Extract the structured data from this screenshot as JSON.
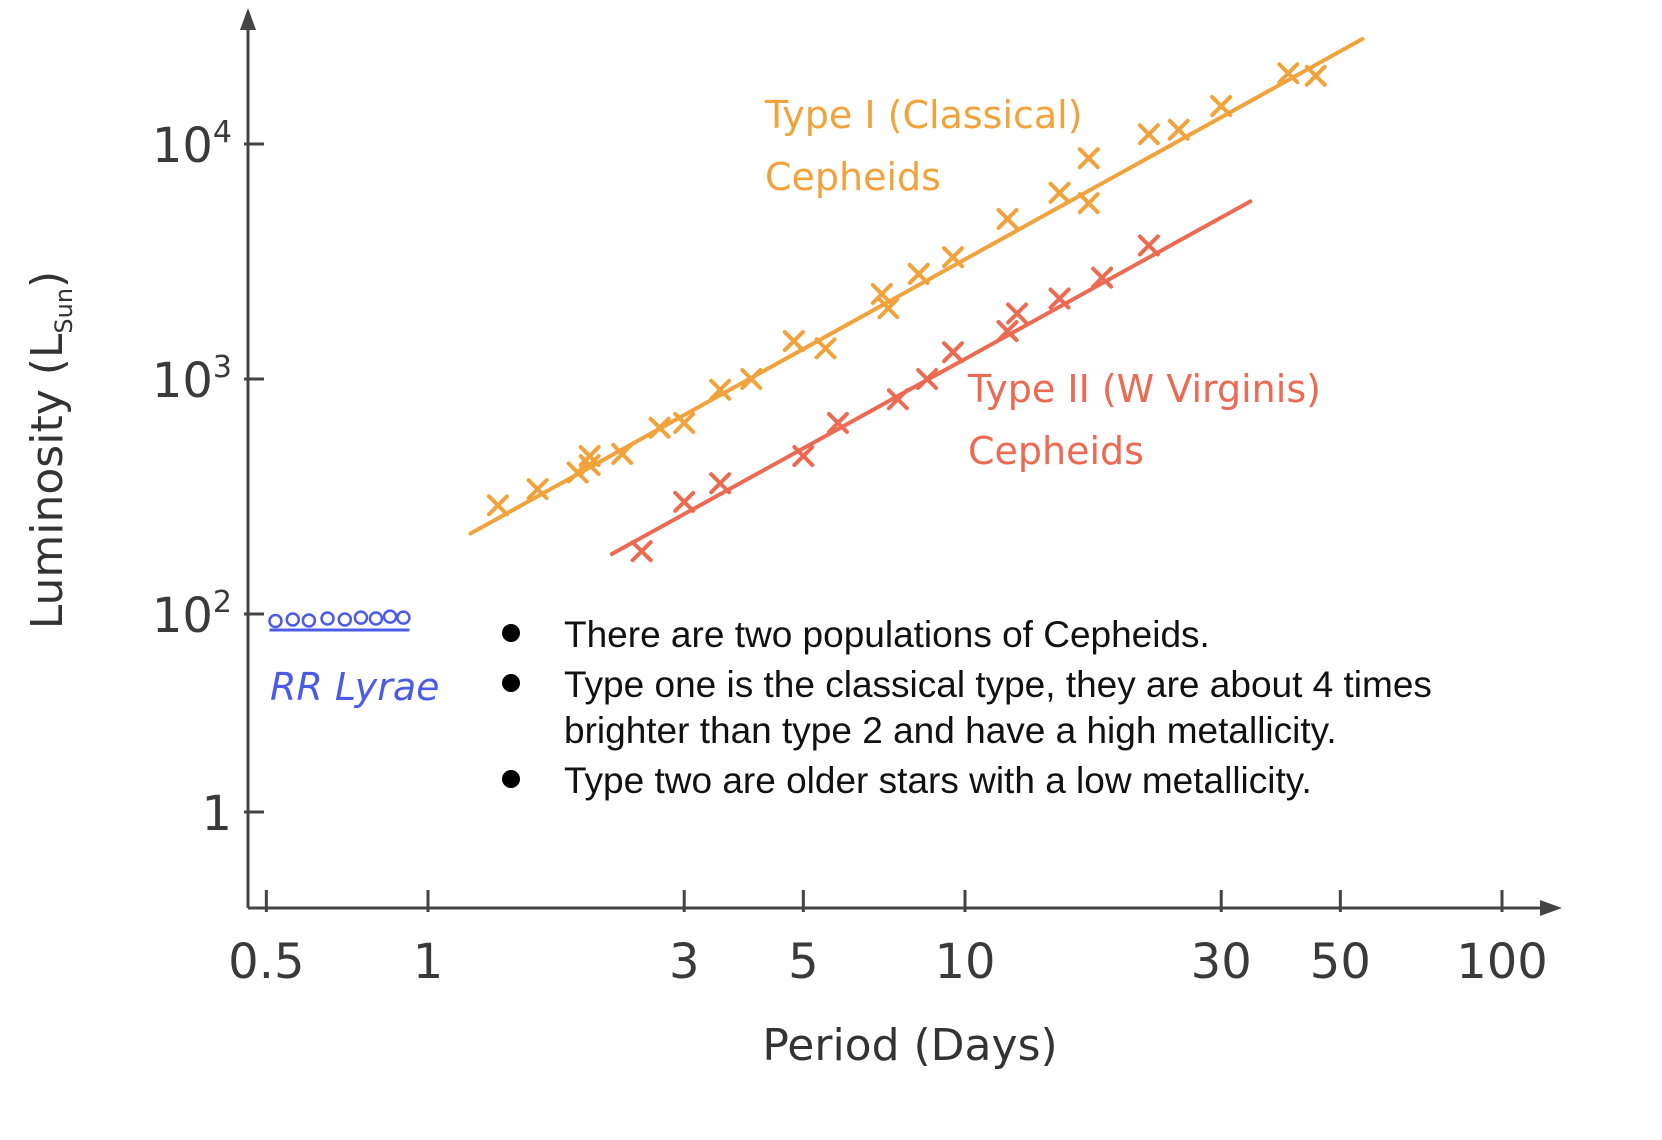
{
  "chart_data": {
    "type": "scatter",
    "xlabel": "Period (Days)",
    "ylabel": "Luminosity (L",
    "ylabel_sub": "Sun",
    "ylabel_close": ")",
    "x_scale": "log",
    "y_scale": "log-like",
    "xlim": [
      0.5,
      100
    ],
    "x_ticks": [
      {
        "value": 0.5,
        "label": "0.5"
      },
      {
        "value": 1,
        "label": "1"
      },
      {
        "value": 3,
        "label": "3"
      },
      {
        "value": 5,
        "label": "5"
      },
      {
        "value": 10,
        "label": "10"
      },
      {
        "value": 30,
        "label": "30"
      },
      {
        "value": 50,
        "label": "50"
      },
      {
        "value": 100,
        "label": "100"
      }
    ],
    "y_ticks": [
      {
        "value": 1,
        "base": "1",
        "exp": ""
      },
      {
        "value": 100,
        "base": "10",
        "exp": "2"
      },
      {
        "value": 1000,
        "base": "10",
        "exp": "3"
      },
      {
        "value": 10000,
        "base": "10",
        "exp": "4"
      }
    ],
    "grid": false,
    "series": [
      {
        "name": "Type I (Classical)",
        "name_line2": "Cepheids",
        "color": "#f2a23a",
        "fit": [
          [
            1.2,
            220
          ],
          [
            55,
            28000
          ]
        ],
        "points": [
          [
            1.35,
            290
          ],
          [
            1.6,
            340
          ],
          [
            1.9,
            400
          ],
          [
            2.0,
            470
          ],
          [
            2.0,
            430
          ],
          [
            2.3,
            480
          ],
          [
            2.7,
            620
          ],
          [
            3.0,
            650
          ],
          [
            3.5,
            900
          ],
          [
            4.0,
            1000
          ],
          [
            4.8,
            1450
          ],
          [
            5.5,
            1350
          ],
          [
            7.0,
            2300
          ],
          [
            7.2,
            2000
          ],
          [
            8.2,
            2800
          ],
          [
            9.5,
            3300
          ],
          [
            12,
            4800
          ],
          [
            15,
            6200
          ],
          [
            17,
            8700
          ],
          [
            17,
            5600
          ],
          [
            22,
            11000
          ],
          [
            25,
            11500
          ],
          [
            30,
            14500
          ],
          [
            40,
            20000
          ],
          [
            45,
            19500
          ]
        ]
      },
      {
        "name": "Type II (W Virginis)",
        "name_line2": "Cepheids",
        "color": "#ec6a52",
        "fit": [
          [
            2.2,
            180
          ],
          [
            34,
            5700
          ]
        ],
        "points": [
          [
            2.5,
            185
          ],
          [
            3.0,
            300
          ],
          [
            3.5,
            360
          ],
          [
            5.0,
            470
          ],
          [
            5.8,
            650
          ],
          [
            7.5,
            820
          ],
          [
            8.5,
            1000
          ],
          [
            9.5,
            1300
          ],
          [
            12,
            1600
          ],
          [
            12.5,
            1900
          ],
          [
            15,
            2200
          ],
          [
            18,
            2700
          ],
          [
            22,
            3700
          ]
        ]
      },
      {
        "name": "RR Lyrae",
        "color": "#4b5be8",
        "points": [
          [
            0.52,
            85
          ],
          [
            0.56,
            88
          ],
          [
            0.6,
            86
          ],
          [
            0.65,
            90
          ],
          [
            0.7,
            88
          ],
          [
            0.75,
            92
          ],
          [
            0.8,
            90
          ],
          [
            0.85,
            94
          ],
          [
            0.9,
            92
          ]
        ]
      }
    ]
  },
  "notes": [
    "There are two populations of Cepheids.",
    "Type one is the classical type, they are about 4 times brighter than type 2 and have a high metallicity.",
    "Type two are older stars with a low metallicity."
  ]
}
